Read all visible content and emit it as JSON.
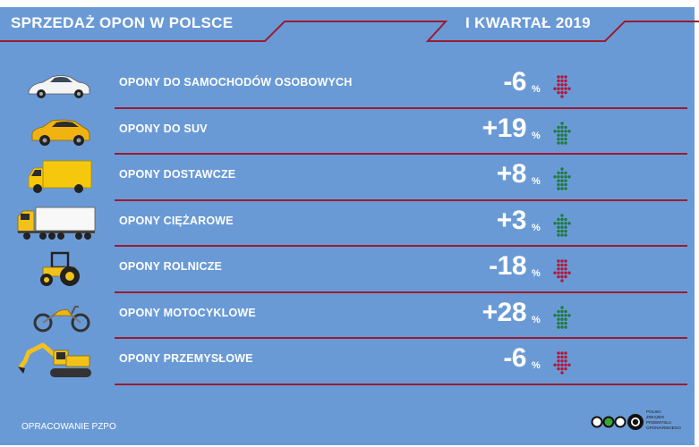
{
  "header": {
    "title": "SPRZEDAŻ OPON W POLSCE",
    "period": "I KWARTAŁ 2019"
  },
  "colors": {
    "background": "#6a9ad6",
    "divider": "#9b1b30",
    "arrow_up": "#1d7a3e",
    "arrow_down": "#b0183a"
  },
  "chart_data": {
    "type": "table",
    "unit": "%",
    "rows": [
      {
        "label": "OPONY DO SAMOCHODÓW OSOBOWYCH",
        "value": -6,
        "value_text": "-6",
        "direction": "down",
        "icon": "car-icon"
      },
      {
        "label": "OPONY DO SUV",
        "value": 19,
        "value_text": "+19",
        "direction": "up",
        "icon": "suv-icon"
      },
      {
        "label": "OPONY DOSTAWCZE",
        "value": 8,
        "value_text": "+8",
        "direction": "up",
        "icon": "delivery-van-icon"
      },
      {
        "label": "OPONY CIĘŻAROWE",
        "value": 3,
        "value_text": "+3",
        "direction": "up",
        "icon": "truck-icon"
      },
      {
        "label": "OPONY ROLNICZE",
        "value": -18,
        "value_text": "-18",
        "direction": "down",
        "icon": "tractor-icon"
      },
      {
        "label": "OPONY MOTOCYKLOWE",
        "value": 28,
        "value_text": "+28",
        "direction": "up",
        "icon": "motorcycle-icon"
      },
      {
        "label": "OPONY PRZEMYSŁOWE",
        "value": -6,
        "value_text": "-6",
        "direction": "down",
        "icon": "excavator-icon"
      }
    ]
  },
  "footer": {
    "note": "OPRACOWANIE PZPO",
    "logo_lines": [
      "POLSKI",
      "ZWIĄZEK",
      "PRZEMYSŁU",
      "OPONIARSKIEGO"
    ]
  }
}
